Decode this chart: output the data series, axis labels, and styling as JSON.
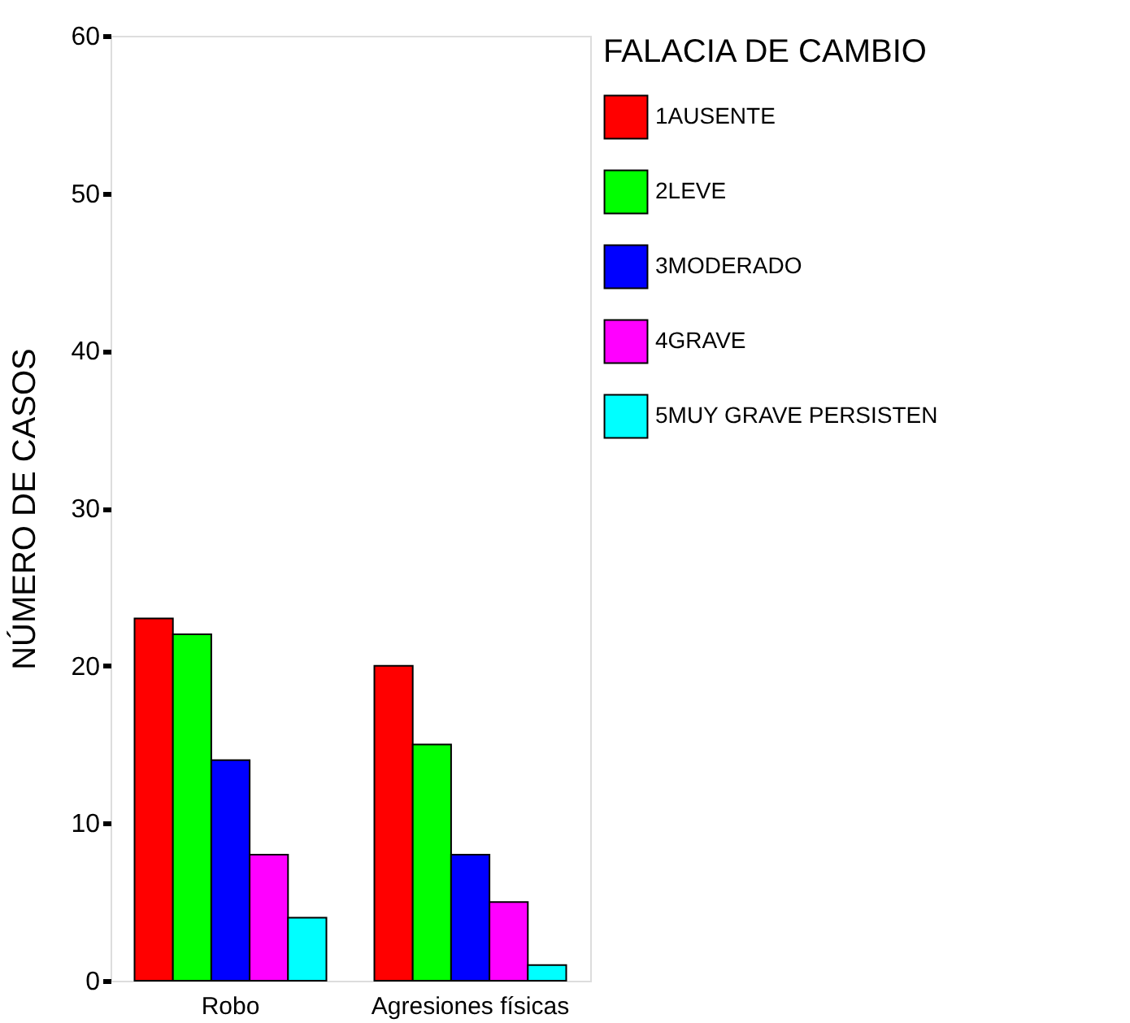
{
  "chart_data": {
    "type": "bar",
    "ylabel": "NÚMERO DE CASOS",
    "legend_title": "FALACIA DE CAMBIO",
    "categories": [
      "Robo",
      "Agresiones físicas"
    ],
    "series": [
      {
        "name": "1AUSENTE",
        "color": "#ff0000",
        "values": [
          23,
          20
        ]
      },
      {
        "name": "2LEVE",
        "color": "#00ff00",
        "values": [
          22,
          15
        ]
      },
      {
        "name": "3MODERADO",
        "color": "#0000ff",
        "values": [
          14,
          8
        ]
      },
      {
        "name": "4GRAVE",
        "color": "#ff00ff",
        "values": [
          8,
          5
        ]
      },
      {
        "name": "5MUY GRAVE PERSISTEN",
        "color": "#00ffff",
        "values": [
          4,
          1
        ]
      }
    ],
    "ylim": [
      0,
      60
    ],
    "yticks": [
      0,
      10,
      20,
      30,
      40,
      50,
      60
    ],
    "grid": false,
    "legend": "right"
  }
}
